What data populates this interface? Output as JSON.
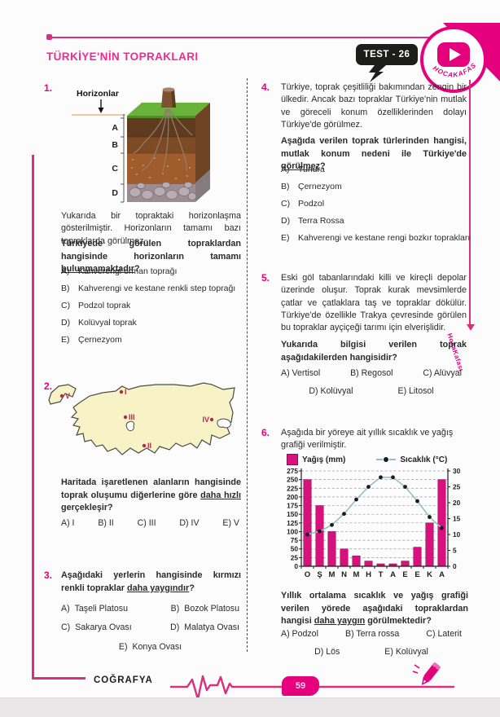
{
  "header": {
    "title": "TÜRKİYE'NİN TOPRAKLARI",
    "test_badge": "TEST - 26",
    "brand": "HOCAKAFASI"
  },
  "footer": {
    "subject": "COĞRAFYA",
    "page_number": "59"
  },
  "watermark": "HocaKafası",
  "colors": {
    "accent": "#e5007d",
    "bar": "#d9117e",
    "temp_line": "#93c1c1",
    "map_fill": "#f7f3c6",
    "map_marker": "#b2294a"
  },
  "questions": {
    "q1": {
      "number": "1.",
      "figure": {
        "label": "Horizonlar",
        "horizons": [
          "A",
          "B",
          "C",
          "D"
        ]
      },
      "intro": "Yukarıda bir topraktaki horizonlaşma gösterilmiştir. Horizonların tamamı bazı topraklarda görülmez.",
      "stem": {
        "b1": "Türkiyede görülen topraklardan hangisinde horizonların tamamı ",
        "u": "bulunmamaktadır",
        "b2": "?"
      },
      "options": [
        {
          "letter": "A)",
          "text": "Kahverengi orman toprağı"
        },
        {
          "letter": "B)",
          "text": "Kahverengi ve kestane renkli step toprağı"
        },
        {
          "letter": "C)",
          "text": "Podzol toprak"
        },
        {
          "letter": "D)",
          "text": "Kolüvyal toprak"
        },
        {
          "letter": "E)",
          "text": "Çernezyom"
        }
      ]
    },
    "q2": {
      "number": "2.",
      "map_markers": [
        "V",
        "I",
        "III",
        "IV",
        "II"
      ],
      "stem": {
        "b1": "Haritada işaretlenen alanların hangisinde toprak oluşumu diğerlerine göre ",
        "u": "daha hızlı",
        "b2": " gerçekleşir?"
      },
      "options": [
        "A) I",
        "B) II",
        "C) III",
        "D) IV",
        "E) V"
      ]
    },
    "q3": {
      "number": "3.",
      "stem": {
        "b1": "Aşağıdaki yerlerin hangisinde kırmızı renkli topraklar ",
        "u": "daha yaygındır",
        "b2": "?"
      },
      "options": [
        {
          "letter": "A)",
          "text": "Taşeli Platosu"
        },
        {
          "letter": "B)",
          "text": "Bozok Platosu"
        },
        {
          "letter": "C)",
          "text": "Sakarya Ovası"
        },
        {
          "letter": "D)",
          "text": "Malatya Ovası"
        },
        {
          "letter": "E)",
          "text": "Konya Ovası"
        }
      ]
    },
    "q4": {
      "number": "4.",
      "intro": "Türkiye, toprak çeşitliliği bakımından zengin bir ülkedir. Ancak bazı topraklar Türkiye'nin mutlak ve göreceli konum özelliklerinden dolayı Türkiye'de görülmez.",
      "stem": {
        "b1": "Aşağıda verilen toprak türlerinden hangisi, mutlak konum nedeni ile Türkiye'de ",
        "u": "görülmez",
        "b2": "?"
      },
      "options": [
        {
          "letter": "A)",
          "text": "Tundra"
        },
        {
          "letter": "B)",
          "text": "Çernezyom"
        },
        {
          "letter": "C)",
          "text": "Podzol"
        },
        {
          "letter": "D)",
          "text": "Terra Rossa"
        },
        {
          "letter": "E)",
          "text": "Kahverengi ve kestane rengi bozkır toprakları"
        }
      ]
    },
    "q5": {
      "number": "5.",
      "intro": "Eski göl tabanlarındaki killi ve kireçli depolar üzerinde oluşur. Toprak kurak mevsimlerde çatlar ve çatlaklara taş ve topraklar dökülür. Türkiye'de özellikle Trakya çevresinde görülen bu topraklar ayçiçeği tarımı için elverişlidir.",
      "stem": {
        "b1": "Yukarıda bilgisi verilen toprak aşağıdakilerden hangisidir?",
        "u": "",
        "b2": ""
      },
      "options_row1": [
        "A) Vertisol",
        "B) Regosol",
        "C) Alüvyal"
      ],
      "options_row2": [
        "D) Kolüvyal",
        "E) Litosol"
      ]
    },
    "q6": {
      "number": "6.",
      "intro": "Aşağıda bir yöreye ait yıllık sıcaklık ve yağış grafiği verilmiştir.",
      "stem": {
        "b1": "Yıllık ortalama sıcaklık ve yağış grafiği verilen yörede aşağıdaki topraklardan hangisi ",
        "u": "daha yaygın",
        "b2": " görülmektedir?"
      },
      "options_row1": [
        "A) Podzol",
        "B) Terra rossa",
        "C) Laterit"
      ],
      "options_row2": [
        "D) Lös",
        "E) Kolüvyal"
      ]
    }
  },
  "chart_data": {
    "type": "bar",
    "categories": [
      "O",
      "Ş",
      "M",
      "N",
      "M",
      "H",
      "T",
      "A",
      "E",
      "E",
      "K",
      "A"
    ],
    "series": [
      {
        "name": "Yağış (mm)",
        "type": "bar",
        "axis": "left",
        "color": "#d9117e",
        "values": [
          250,
          175,
          100,
          50,
          30,
          15,
          7,
          7,
          15,
          55,
          125,
          250
        ]
      },
      {
        "name": "Sıcaklık (°C)",
        "type": "line",
        "axis": "right",
        "color": "#93c1c1",
        "marker_color": "#1b1b1b",
        "values": [
          10,
          11,
          13,
          16.5,
          21,
          25,
          28,
          28,
          25,
          20.5,
          15.5,
          12
        ]
      }
    ],
    "left_axis": {
      "label": "Yağış (mm)",
      "min": 0,
      "max": 275,
      "step": 25
    },
    "right_axis": {
      "label": "Sıcaklık (°C)",
      "min": 0,
      "max": 30,
      "step": 5
    },
    "grid": true,
    "legend_position": "top"
  }
}
